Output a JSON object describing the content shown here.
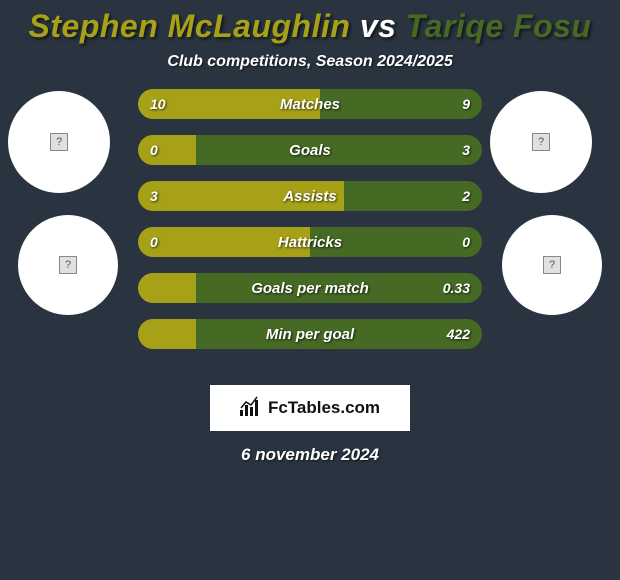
{
  "background_color": "#2a3440",
  "title": {
    "player1": {
      "name": "Stephen McLaughlin",
      "color": "#a7a117"
    },
    "vs": {
      "text": "vs",
      "color": "#ffffff"
    },
    "player2": {
      "name": "Tariqe Fosu",
      "color": "#466a24"
    },
    "fontsize": 32
  },
  "subtitle": "Club competitions, Season 2024/2025",
  "colors": {
    "left_fill": "#a7a117",
    "right_fill": "#466a24",
    "text": "#ffffff"
  },
  "bar_style": {
    "height": 30,
    "gap": 16,
    "border_radius": 15,
    "label_fontsize": 15,
    "value_fontsize": 14
  },
  "stats": [
    {
      "label": "Matches",
      "left_val": "10",
      "right_val": "9",
      "left_pct": 53,
      "right_pct": 47
    },
    {
      "label": "Goals",
      "left_val": "0",
      "right_val": "3",
      "left_pct": 17,
      "right_pct": 83
    },
    {
      "label": "Assists",
      "left_val": "3",
      "right_val": "2",
      "left_pct": 60,
      "right_pct": 40
    },
    {
      "label": "Hattricks",
      "left_val": "0",
      "right_val": "0",
      "left_pct": 50,
      "right_pct": 50
    },
    {
      "label": "Goals per match",
      "left_val": "",
      "right_val": "0.33",
      "left_pct": 17,
      "right_pct": 83
    },
    {
      "label": "Min per goal",
      "left_val": "",
      "right_val": "422",
      "left_pct": 17,
      "right_pct": 83
    }
  ],
  "avatars": {
    "placeholder_glyph": "?"
  },
  "branding": {
    "text": "FcTables.com",
    "background": "#ffffff"
  },
  "date": "6 november 2024"
}
